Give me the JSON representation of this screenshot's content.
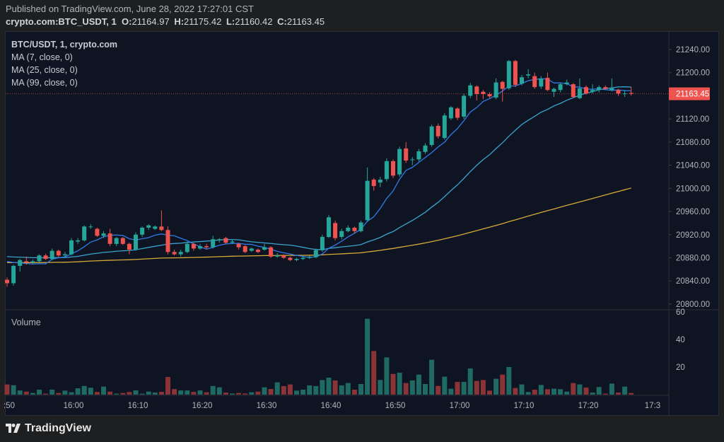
{
  "header": {
    "published": "Published on TradingView.com, June 28, 2022 17:27:01 CST",
    "symbol": "crypto.com:BTC_USDT, 1",
    "o_label": "O:",
    "o": "21164.97",
    "h_label": "H:",
    "h": "21175.42",
    "l_label": "L:",
    "l": "21160.42",
    "c_label": "C:",
    "c": "21163.45"
  },
  "legend": {
    "title": "BTC/USDT, 1, crypto.com",
    "ma7": "MA (7, close, 0)",
    "ma25": "MA (25, close, 0)",
    "ma99": "MA (99, close, 0)"
  },
  "volume_label": "Volume",
  "logo_text": "TradingView",
  "colors": {
    "up": "#26a69a",
    "down": "#ef5350",
    "vol_up": "#1f6b63",
    "vol_down": "#8a3438",
    "ma7": "#2f7be6",
    "ma25": "#3aa3cf",
    "ma99": "#d9a93a",
    "last_price_bg": "#ef5350"
  },
  "chart_data": {
    "type": "candlestick",
    "interval": "1",
    "price_axis": {
      "ticks": [
        "21240.00",
        "21200.00",
        "21120.00",
        "21080.00",
        "21040.00",
        "21000.00",
        "20960.00",
        "20920.00",
        "20880.00",
        "20840.00",
        "20800.00"
      ],
      "range": [
        20800,
        21240
      ]
    },
    "last_price": "21163.45",
    "volume_axis": {
      "ticks": [
        "60",
        "40",
        "20"
      ],
      "range": [
        0,
        60
      ]
    },
    "time_axis": {
      "ticks": [
        ":50",
        "16:00",
        "16:10",
        "16:20",
        "16:30",
        "16:40",
        "16:50",
        "17:00",
        "17:10",
        "17:20",
        "17:3"
      ]
    },
    "candle_fields": [
      "time",
      "open",
      "high",
      "low",
      "close",
      "volume"
    ],
    "candles": [
      [
        "15:50",
        20842,
        20846,
        20830,
        20836,
        7.4
      ],
      [
        "15:51",
        20836,
        20868,
        20832,
        20866,
        6.8
      ],
      [
        "15:52",
        20866,
        20878,
        20856,
        20876,
        3
      ],
      [
        "15:53",
        20874,
        20882,
        20868,
        20872,
        2.2
      ],
      [
        "15:54",
        20872,
        20877,
        20869,
        20874,
        1.2
      ],
      [
        "15:55",
        20874,
        20886,
        20872,
        20884,
        3.6
      ],
      [
        "15:56",
        20884,
        20887,
        20876,
        20878,
        0.7
      ],
      [
        "15:57",
        20878,
        20896,
        20876,
        20892,
        3.6
      ],
      [
        "15:58",
        20892,
        20894,
        20880,
        20884,
        1.2
      ],
      [
        "15:59",
        20884,
        20890,
        20882,
        20886,
        2.9
      ],
      [
        "16:00",
        20886,
        20914,
        20884,
        20910,
        1.7
      ],
      [
        "16:01",
        20908,
        20914,
        20904,
        20910,
        4.6
      ],
      [
        "16:02",
        20910,
        20936,
        20908,
        20934,
        6.3
      ],
      [
        "16:03",
        20934,
        20938,
        20930,
        20934,
        5
      ],
      [
        "16:04",
        20930,
        20932,
        20916,
        20918,
        1.9
      ],
      [
        "16:05",
        20918,
        20926,
        20914,
        20922,
        5.8
      ],
      [
        "16:06",
        20922,
        20930,
        20900,
        20904,
        2.2
      ],
      [
        "16:07",
        20904,
        20916,
        20900,
        20914,
        0.7
      ],
      [
        "16:08",
        20914,
        20916,
        20902,
        20904,
        1.2
      ],
      [
        "16:09",
        20904,
        20906,
        20886,
        20894,
        1.9
      ],
      [
        "16:10",
        20894,
        20924,
        20892,
        20920,
        3.1
      ],
      [
        "16:11",
        20920,
        20934,
        20916,
        20932,
        0.7
      ],
      [
        "16:12",
        20932,
        20938,
        20928,
        20936,
        2.2
      ],
      [
        "16:13",
        20930,
        20936,
        20928,
        20934,
        1.5
      ],
      [
        "16:14",
        20934,
        20962,
        20926,
        20928,
        2
      ],
      [
        "16:15",
        20928,
        20934,
        20886,
        20890,
        12.8
      ],
      [
        "16:16",
        20890,
        20894,
        20884,
        20886,
        4
      ],
      [
        "16:17",
        20886,
        20894,
        20882,
        20890,
        3
      ],
      [
        "16:18",
        20890,
        20908,
        20888,
        20904,
        3
      ],
      [
        "16:19",
        20904,
        20906,
        20892,
        20896,
        2
      ],
      [
        "16:20",
        20896,
        20904,
        20894,
        20900,
        3
      ],
      [
        "16:21",
        20900,
        20904,
        20894,
        20898,
        1.7
      ],
      [
        "16:22",
        20898,
        20918,
        20896,
        20912,
        6.3
      ],
      [
        "16:23",
        20910,
        20914,
        20906,
        20912,
        5.3
      ],
      [
        "16:24",
        20914,
        20916,
        20904,
        20906,
        1.5
      ],
      [
        "16:25",
        20906,
        20912,
        20904,
        20908,
        0.8
      ],
      [
        "16:26",
        20904,
        20906,
        20894,
        20898,
        1.2
      ],
      [
        "16:27",
        20900,
        20902,
        20888,
        20890,
        0.8
      ],
      [
        "16:28",
        20892,
        20898,
        20890,
        20896,
        1.7
      ],
      [
        "16:29",
        20894,
        20896,
        20888,
        20890,
        2.2
      ],
      [
        "16:30",
        20894,
        20904,
        20892,
        20898,
        5.3
      ],
      [
        "16:31",
        20898,
        20900,
        20880,
        20882,
        4.1
      ],
      [
        "16:32",
        20882,
        20888,
        20880,
        20884,
        8.9
      ],
      [
        "16:33",
        20884,
        20886,
        20878,
        20880,
        6.2
      ],
      [
        "16:34",
        20880,
        20882,
        20874,
        20876,
        7.4
      ],
      [
        "16:35",
        20876,
        20880,
        20874,
        20878,
        2.9
      ],
      [
        "16:36",
        20878,
        20882,
        20876,
        20880,
        3.6
      ],
      [
        "16:37",
        20880,
        20884,
        20878,
        20882,
        6.7
      ],
      [
        "16:38",
        20881,
        20896,
        20879,
        20893,
        6.2
      ],
      [
        "16:39",
        20893,
        20920,
        20890,
        20916,
        10.6
      ],
      [
        "16:40",
        20916,
        20954,
        20914,
        20950,
        12.3
      ],
      [
        "16:41",
        20940,
        20944,
        20910,
        20914,
        10.3
      ],
      [
        "16:42",
        20916,
        20930,
        20912,
        20926,
        6.7
      ],
      [
        "16:43",
        20926,
        20936,
        20924,
        20932,
        8.4
      ],
      [
        "16:44",
        20932,
        20934,
        20922,
        20926,
        3.6
      ],
      [
        "16:45",
        20926,
        20944,
        20924,
        20941,
        7.7
      ],
      [
        "16:46",
        20945,
        21036,
        20942,
        21013,
        55
      ],
      [
        "16:47",
        21015,
        21018,
        20996,
        21004,
        31.6
      ],
      [
        "16:48",
        21010,
        21020,
        21002,
        21015,
        10.6
      ],
      [
        "16:49",
        21016,
        21052,
        21012,
        21047,
        27
      ],
      [
        "16:50",
        21047,
        21050,
        21018,
        21022,
        15
      ],
      [
        "16:51",
        21024,
        21072,
        21020,
        21068,
        15.9
      ],
      [
        "16:52",
        21069,
        21080,
        21044,
        21048,
        8.4
      ],
      [
        "16:53",
        21050,
        21054,
        21040,
        21050,
        10.3
      ],
      [
        "16:54",
        21050,
        21068,
        21046,
        21064,
        14.5
      ],
      [
        "16:55",
        21063,
        21078,
        21060,
        21074,
        7.7
      ],
      [
        "16:56",
        21075,
        21110,
        21072,
        21107,
        25.3
      ],
      [
        "16:57",
        21108,
        21112,
        21086,
        21090,
        6.3
      ],
      [
        "16:58",
        21087,
        21130,
        21084,
        21126,
        13
      ],
      [
        "16:59",
        21121,
        21142,
        21118,
        21140,
        4.3
      ],
      [
        "17:00",
        21138,
        21140,
        21118,
        21122,
        9.2
      ],
      [
        "17:01",
        21124,
        21164,
        21120,
        21160,
        9.2
      ],
      [
        "17:02",
        21160,
        21182,
        21156,
        21178,
        19
      ],
      [
        "17:03",
        21176,
        21178,
        21152,
        21163,
        9.9
      ],
      [
        "17:04",
        21167,
        21170,
        21154,
        21163,
        10.6
      ],
      [
        "17:05",
        21163,
        21166,
        21156,
        21159,
        2.9
      ],
      [
        "17:06",
        21157,
        21190,
        21154,
        21183,
        11.5
      ],
      [
        "17:07",
        21184,
        21186,
        21150,
        21172,
        14.5
      ],
      [
        "17:08",
        21173,
        21222,
        21170,
        21220,
        20
      ],
      [
        "17:09",
        21220,
        21222,
        21175,
        21179,
        4.8
      ],
      [
        "17:10",
        21181,
        21196,
        21178,
        21192,
        7.4
      ],
      [
        "17:11",
        21195,
        21206,
        21190,
        21197,
        1.9
      ],
      [
        "17:12",
        21194,
        21200,
        21172,
        21175,
        3.6
      ],
      [
        "17:13",
        21176,
        21194,
        21172,
        21190,
        7
      ],
      [
        "17:14",
        21191,
        21200,
        21168,
        21170,
        3.9
      ],
      [
        "17:15",
        21167,
        21174,
        21158,
        21172,
        4.3
      ],
      [
        "17:16",
        21170,
        21182,
        21166,
        21180,
        3.9
      ],
      [
        "17:17",
        21180,
        21188,
        21178,
        21183,
        2.2
      ],
      [
        "17:18",
        21180,
        21182,
        21156,
        21158,
        8.4
      ],
      [
        "17:19",
        21156,
        21190,
        21154,
        21173,
        7.4
      ],
      [
        "17:20",
        21175,
        21178,
        21162,
        21164,
        5.1
      ],
      [
        "17:21",
        21167,
        21180,
        21164,
        21170,
        1.5
      ],
      [
        "17:22",
        21170,
        21178,
        21166,
        21175,
        5.5
      ],
      [
        "17:23",
        21175,
        21178,
        21170,
        21172,
        0.7
      ],
      [
        "17:24",
        21170,
        21190,
        21168,
        21173,
        8
      ],
      [
        "17:25",
        21170,
        21172,
        21160,
        21164,
        1.5
      ],
      [
        "17:26",
        21163,
        21170,
        21158,
        21164,
        5.8
      ],
      [
        "17:27",
        21164.97,
        21175.42,
        21160.42,
        21163.45,
        1.2
      ]
    ]
  }
}
